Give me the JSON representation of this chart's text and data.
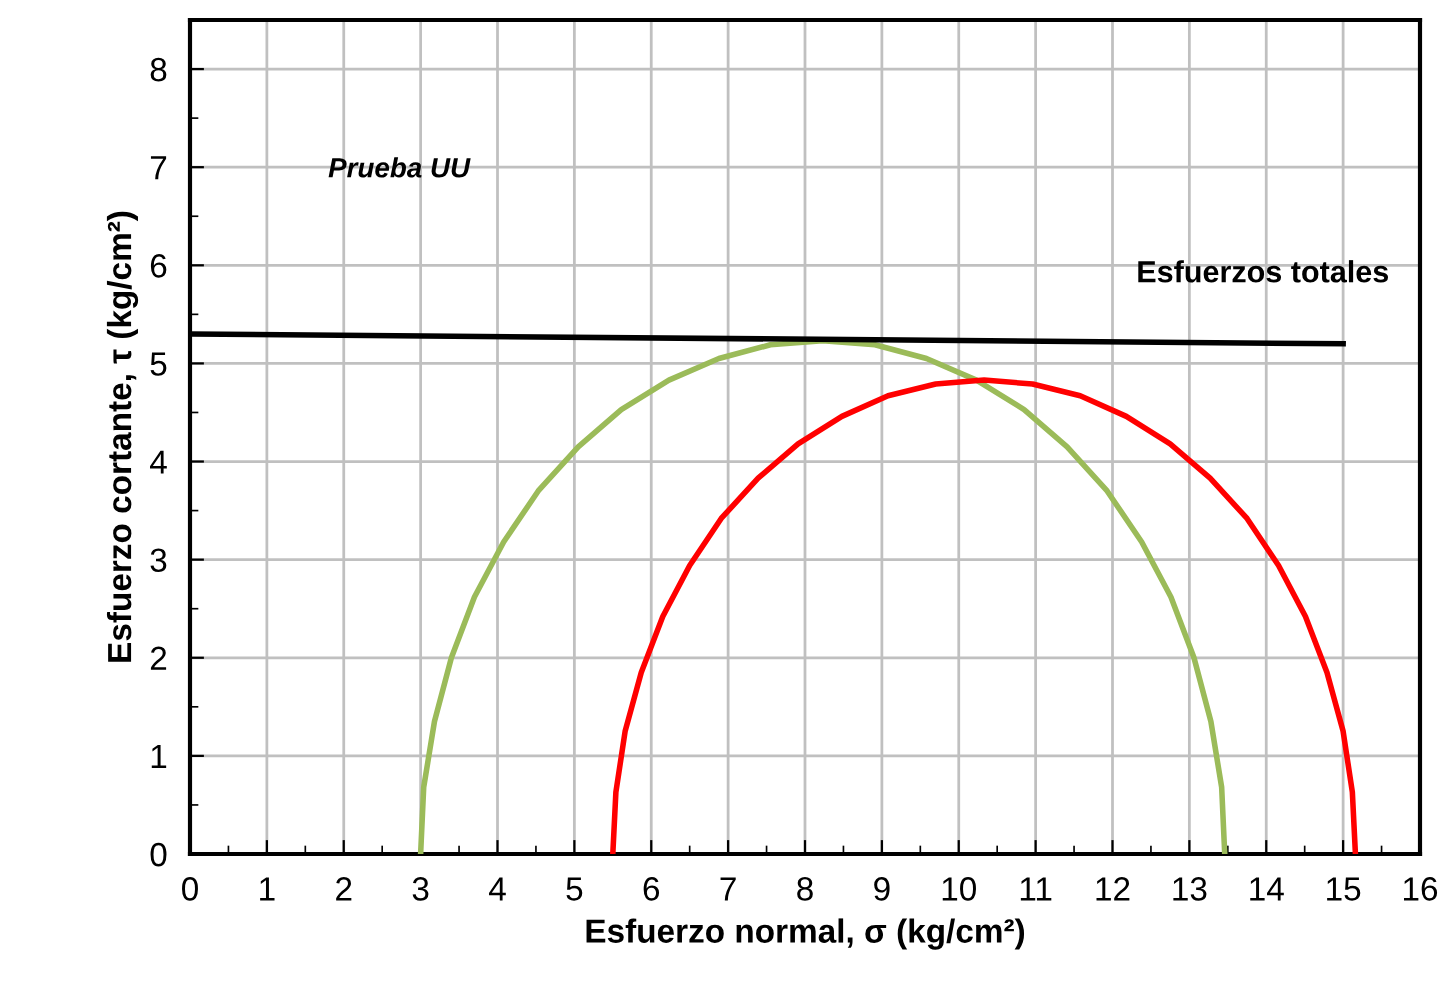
{
  "chart_data": {
    "type": "line",
    "xlabel": "Esfuerzo normal, σ (kg/cm²)",
    "ylabel": "Esfuerzo cortante, τ (kg/cm²)",
    "xlim": [
      0,
      16
    ],
    "xticks": [
      0,
      1,
      2,
      3,
      4,
      5,
      6,
      7,
      8,
      9,
      10,
      11,
      12,
      13,
      14,
      15,
      16
    ],
    "ylim": [
      0,
      8.5
    ],
    "yticks": [
      0,
      1,
      2,
      3,
      4,
      5,
      6,
      7,
      8
    ],
    "grid": true,
    "legend": false,
    "marker": "none",
    "line_style": "solid",
    "series": [
      {
        "color": "#9bbb59",
        "x": [
          3.0,
          3.04,
          3.18,
          3.4,
          3.7,
          4.08,
          4.53,
          5.05,
          5.61,
          6.23,
          6.88,
          7.55,
          8.23,
          8.91,
          9.58,
          10.23,
          10.85,
          11.41,
          11.93,
          12.38,
          12.76,
          13.06,
          13.28,
          13.42,
          13.46
        ],
        "values": [
          0,
          0.68,
          1.35,
          2.0,
          2.62,
          3.18,
          3.7,
          4.15,
          4.53,
          4.83,
          5.05,
          5.19,
          5.23,
          5.19,
          5.05,
          4.83,
          4.53,
          4.15,
          3.7,
          3.18,
          2.62,
          2.0,
          1.35,
          0.68,
          0
        ]
      },
      {
        "color": "#ff0000",
        "x": [
          5.5,
          5.54,
          5.66,
          5.87,
          6.15,
          6.5,
          6.91,
          7.39,
          7.91,
          8.48,
          9.08,
          9.7,
          10.33,
          10.96,
          11.58,
          12.18,
          12.75,
          13.27,
          13.75,
          14.16,
          14.51,
          14.79,
          15.0,
          15.12,
          15.16
        ],
        "values": [
          0,
          0.63,
          1.25,
          1.85,
          2.42,
          2.94,
          3.42,
          3.83,
          4.18,
          4.46,
          4.67,
          4.79,
          4.83,
          4.79,
          4.67,
          4.46,
          4.18,
          3.83,
          3.42,
          2.94,
          2.42,
          1.85,
          1.25,
          0.63,
          0
        ]
      },
      {
        "color": "#000000",
        "x": [
          0,
          15
        ],
        "values": [
          5.3,
          5.2
        ]
      }
    ],
    "annotations": [
      "Prueba UU",
      "Esfuerzos totales"
    ]
  }
}
